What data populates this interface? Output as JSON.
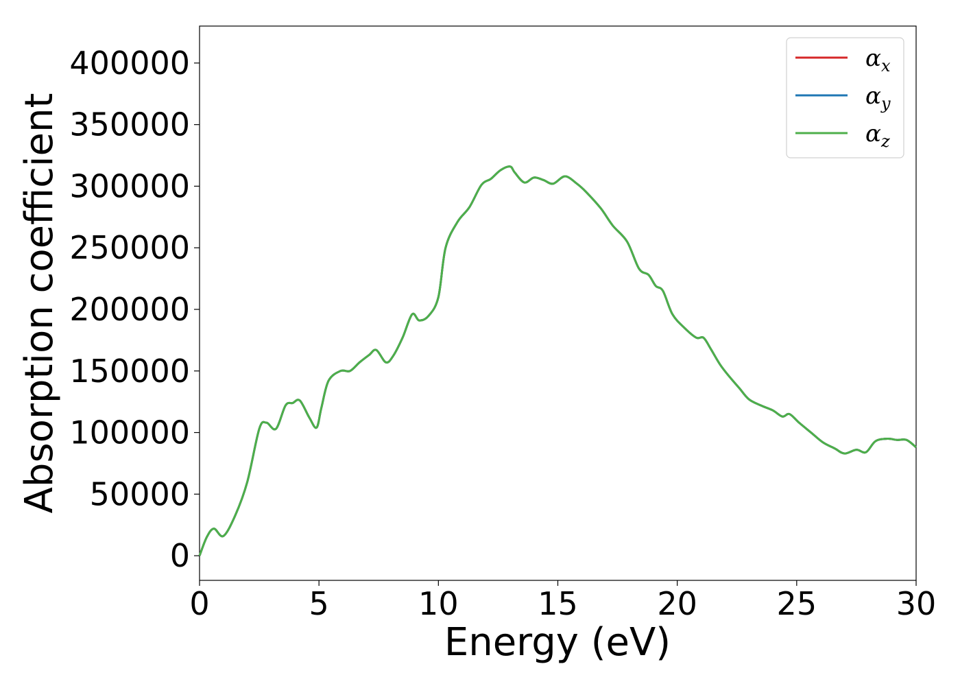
{
  "chart_data": {
    "type": "line",
    "xlabel": "Energy (eV)",
    "ylabel": "Absorption coefficient",
    "xlim": [
      0,
      30
    ],
    "ylim": [
      -20000,
      430000
    ],
    "xticks": [
      0,
      5,
      10,
      15,
      20,
      25,
      30
    ],
    "yticks": [
      0,
      50000,
      100000,
      150000,
      200000,
      250000,
      300000,
      350000,
      400000
    ],
    "grid": false,
    "legend_position": "top-right",
    "x": [
      0,
      0.3,
      0.6,
      1.0,
      1.5,
      2.0,
      2.5,
      2.8,
      3.2,
      3.6,
      3.9,
      4.2,
      4.6,
      4.9,
      5.1,
      5.4,
      5.9,
      6.3,
      6.7,
      7.1,
      7.4,
      7.8,
      8.1,
      8.5,
      8.9,
      9.2,
      9.6,
      10.0,
      10.3,
      10.8,
      11.3,
      11.8,
      12.2,
      12.6,
      13.0,
      13.2,
      13.6,
      14.0,
      14.4,
      14.8,
      15.3,
      15.8,
      16.2,
      16.8,
      17.3,
      17.9,
      18.4,
      18.8,
      19.1,
      19.4,
      19.8,
      20.3,
      20.8,
      21.1,
      21.4,
      21.8,
      22.2,
      22.6,
      23.0,
      23.5,
      24.0,
      24.4,
      24.7,
      25.1,
      25.6,
      26.1,
      26.6,
      27.0,
      27.5,
      27.9,
      28.3,
      28.8,
      29.2,
      29.6,
      30.0
    ],
    "series": [
      {
        "name": "α_x",
        "color": "#d62728",
        "values": [
          0,
          15000,
          22000,
          16000,
          33000,
          60000,
          103000,
          108000,
          103000,
          122000,
          124000,
          126000,
          112000,
          104000,
          120000,
          142000,
          150000,
          150000,
          157000,
          163000,
          167000,
          157000,
          162000,
          177000,
          196000,
          191000,
          195000,
          210000,
          250000,
          271000,
          283000,
          301000,
          306000,
          313000,
          316000,
          311000,
          303000,
          307000,
          305000,
          302000,
          308000,
          302000,
          295000,
          282000,
          268000,
          255000,
          233000,
          228000,
          219000,
          215000,
          196000,
          185000,
          177000,
          177000,
          168000,
          155000,
          145000,
          136000,
          127000,
          122000,
          118000,
          113000,
          115000,
          108000,
          100000,
          92000,
          87000,
          83000,
          86000,
          84000,
          93000,
          95000,
          94000,
          94000,
          88000
        ]
      },
      {
        "name": "α_y",
        "color": "#1f77b4",
        "values": [
          0,
          15000,
          22000,
          16000,
          33000,
          60000,
          103000,
          108000,
          103000,
          122000,
          124000,
          126000,
          112000,
          104000,
          120000,
          142000,
          150000,
          150000,
          157000,
          163000,
          167000,
          157000,
          162000,
          177000,
          196000,
          191000,
          195000,
          210000,
          250000,
          271000,
          283000,
          301000,
          306000,
          313000,
          316000,
          311000,
          303000,
          307000,
          305000,
          302000,
          308000,
          302000,
          295000,
          282000,
          268000,
          255000,
          233000,
          228000,
          219000,
          215000,
          196000,
          185000,
          177000,
          177000,
          168000,
          155000,
          145000,
          136000,
          127000,
          122000,
          118000,
          113000,
          115000,
          108000,
          100000,
          92000,
          87000,
          83000,
          86000,
          84000,
          93000,
          95000,
          94000,
          94000,
          88000
        ]
      },
      {
        "name": "α_z",
        "color": "#4daf4a",
        "values": [
          0,
          15000,
          22000,
          16000,
          33000,
          60000,
          103000,
          108000,
          103000,
          122000,
          124000,
          126000,
          112000,
          104000,
          120000,
          142000,
          150000,
          150000,
          157000,
          163000,
          167000,
          157000,
          162000,
          177000,
          196000,
          191000,
          195000,
          210000,
          250000,
          271000,
          283000,
          301000,
          306000,
          313000,
          316000,
          311000,
          303000,
          307000,
          305000,
          302000,
          308000,
          302000,
          295000,
          282000,
          268000,
          255000,
          233000,
          228000,
          219000,
          215000,
          196000,
          185000,
          177000,
          177000,
          168000,
          155000,
          145000,
          136000,
          127000,
          122000,
          118000,
          113000,
          115000,
          108000,
          100000,
          92000,
          87000,
          83000,
          86000,
          84000,
          93000,
          95000,
          94000,
          94000,
          88000
        ]
      }
    ],
    "legend": [
      {
        "symbol": "α",
        "sub": "x"
      },
      {
        "symbol": "α",
        "sub": "y"
      },
      {
        "symbol": "α",
        "sub": "z"
      }
    ]
  }
}
